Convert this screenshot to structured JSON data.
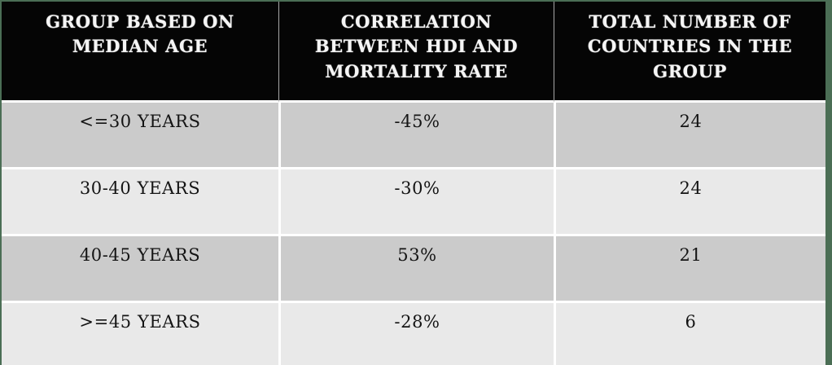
{
  "table": {
    "headers": [
      "GROUP BASED ON MEDIAN AGE",
      "CORRELATION BETWEEN HDI AND MORTALITY RATE",
      "TOTAL NUMBER OF COUNTRIES IN THE GROUP"
    ],
    "rows": [
      [
        "<=30 YEARS",
        "-45%",
        "24"
      ],
      [
        "30-40 YEARS",
        "-30%",
        "24"
      ],
      [
        "40-45 YEARS",
        "53%",
        "21"
      ],
      [
        ">=45 YEARS",
        "-28%",
        "6"
      ]
    ]
  },
  "chart_data": {
    "type": "table",
    "title": "",
    "columns": [
      "GROUP BASED ON MEDIAN AGE",
      "CORRELATION BETWEEN HDI AND MORTALITY RATE",
      "TOTAL NUMBER OF COUNTRIES IN THE GROUP"
    ],
    "categories": [
      "<=30 YEARS",
      "30-40 YEARS",
      "40-45 YEARS",
      ">=45 YEARS"
    ],
    "series": [
      {
        "name": "Correlation between HDI and mortality rate (%)",
        "values": [
          -45,
          -30,
          53,
          -28
        ]
      },
      {
        "name": "Total number of countries in the group",
        "values": [
          24,
          24,
          21,
          6
        ]
      }
    ]
  },
  "colors": {
    "slide_edge_green": "#4b6e55",
    "header_bg": "#050505",
    "header_text": "#f5f5f5",
    "row_odd_bg": "#cbcbcb",
    "row_even_bg": "#e9e9e9",
    "separator": "#ffffff",
    "body_text": "#141414"
  }
}
